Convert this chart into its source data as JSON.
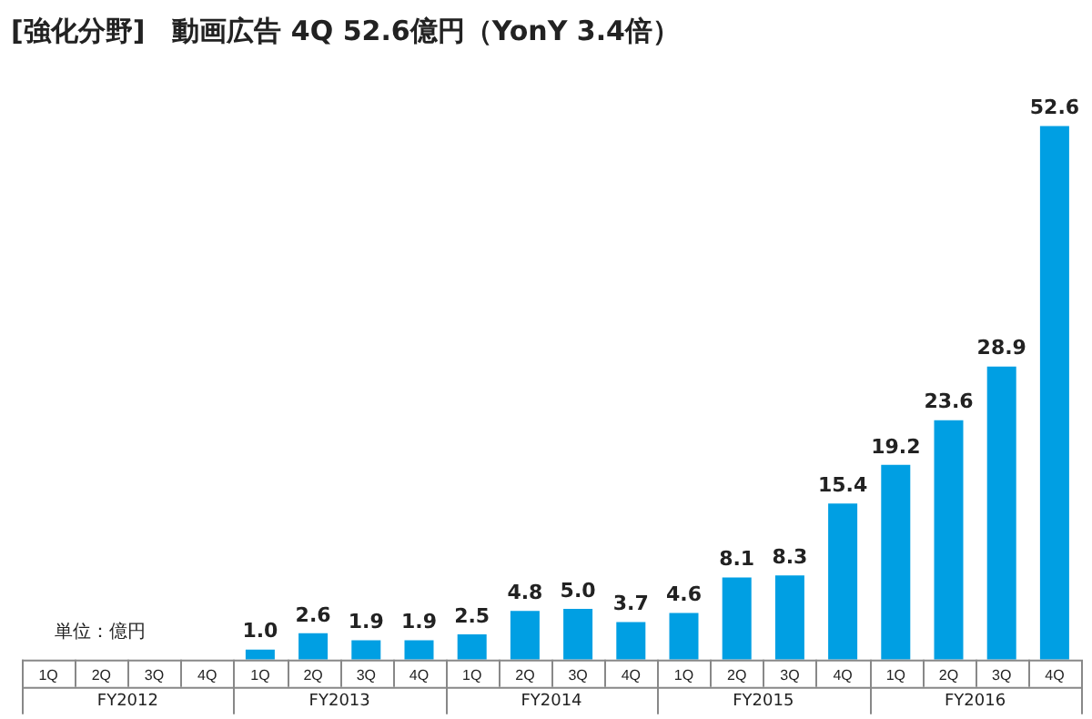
{
  "chart_data": {
    "type": "bar",
    "title": "[強化分野]　動画広告 4Q 52.6億円（YonY 3.4倍）",
    "categories": [
      "1Q",
      "2Q",
      "3Q",
      "4Q",
      "1Q",
      "2Q",
      "3Q",
      "4Q",
      "1Q",
      "2Q",
      "3Q",
      "4Q",
      "1Q",
      "2Q",
      "3Q",
      "4Q",
      "1Q",
      "2Q",
      "3Q",
      "4Q"
    ],
    "values": [
      null,
      null,
      null,
      null,
      1.0,
      2.6,
      1.9,
      1.9,
      2.5,
      4.8,
      5.0,
      3.7,
      4.6,
      8.1,
      8.3,
      15.4,
      19.2,
      23.6,
      28.9,
      52.6
    ],
    "value_labels": [
      null,
      null,
      null,
      null,
      "1.0",
      "2.6",
      "1.9",
      "1.9",
      "2.5",
      "4.8",
      "5.0",
      "3.7",
      "4.6",
      "8.1",
      "8.3",
      "15.4",
      "19.2",
      "23.6",
      "28.9",
      "52.6"
    ],
    "color": "#009fe3",
    "grid": false,
    "legend": false,
    "annotations": [
      "単位：億円",
      "FY2012",
      "FY2013",
      "FY2014",
      "FY2015",
      "FY2016"
    ]
  }
}
